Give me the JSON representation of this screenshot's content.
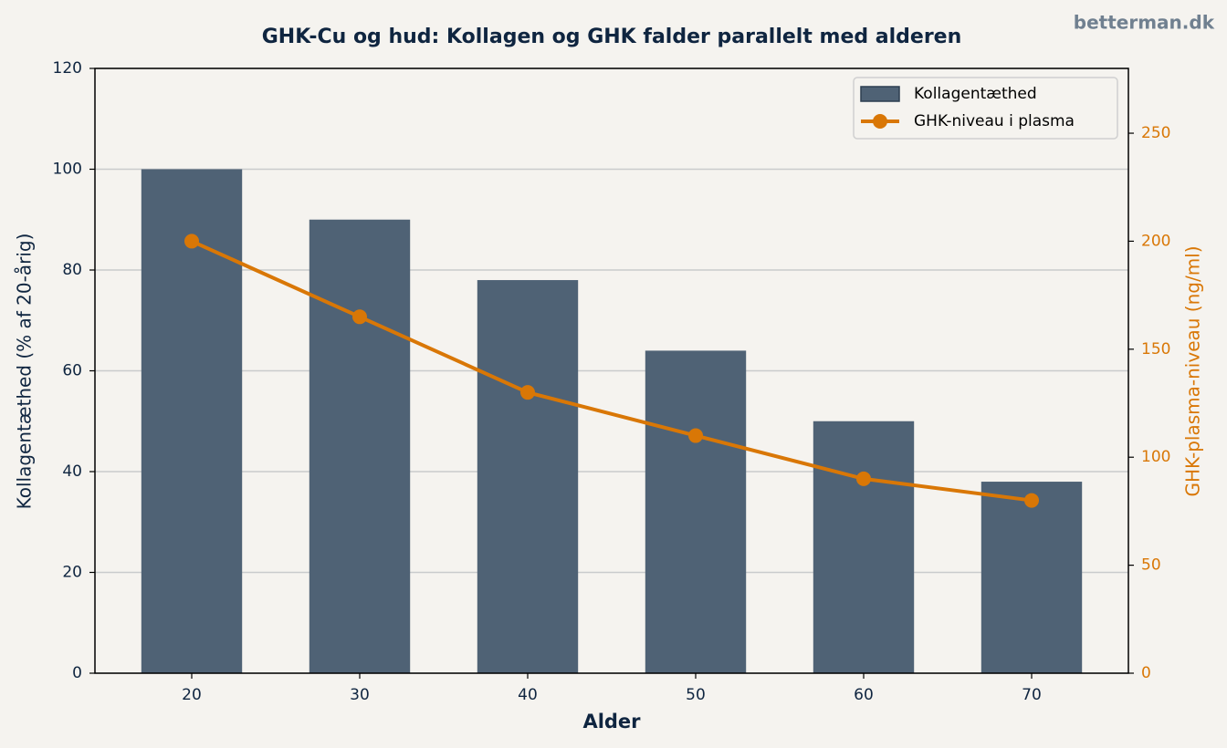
{
  "chart_data": {
    "type": "bar_line",
    "title": "GHK-Cu og hud: Kollagen og GHK falder parallelt med alderen",
    "watermark": "betterman.dk",
    "x_label": "Alder",
    "y_label": "Kollagentæthed (% af 20-årig)",
    "y2_label": "GHK-plasma-niveau (ng/ml)",
    "categories": [
      "20",
      "30",
      "40",
      "50",
      "60",
      "70"
    ],
    "series": [
      {
        "name": "Kollagentæthed",
        "type": "bar",
        "color": "#4f6275",
        "values": [
          100,
          90,
          78,
          64,
          50,
          38
        ]
      },
      {
        "name": "GHK-niveau i plasma",
        "type": "line",
        "axis": "y2",
        "color": "#d97706",
        "values": [
          200,
          165,
          130,
          110,
          90,
          80
        ]
      }
    ],
    "ylim": [
      0,
      120
    ],
    "yticks": [
      0,
      20,
      40,
      60,
      80,
      100,
      120
    ],
    "y2lim": [
      0,
      280
    ],
    "y2ticks": [
      0,
      50,
      100,
      150,
      200,
      250
    ],
    "grid": true,
    "legend": "upper right"
  }
}
